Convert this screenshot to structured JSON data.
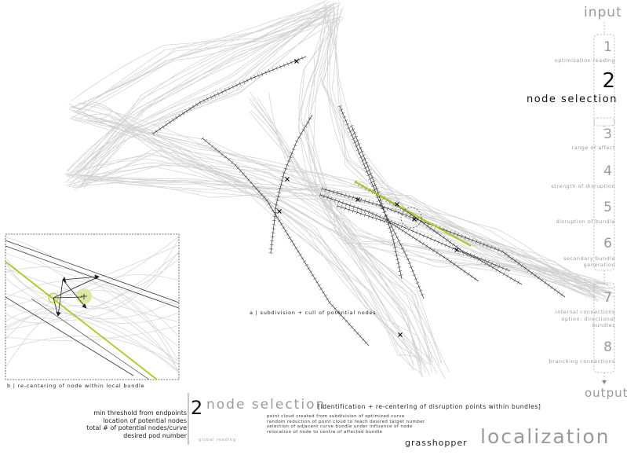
{
  "flow": {
    "input_label": "input",
    "output_label": "output",
    "steps": [
      {
        "number": "1",
        "label": "optimization reading"
      },
      {
        "number": "2",
        "label": "node selection"
      },
      {
        "number": "3",
        "label": "range of affect"
      },
      {
        "number": "4",
        "label": "strength of disruption"
      },
      {
        "number": "5",
        "label": "disruption of bundle"
      },
      {
        "number": "6",
        "label": "secondary bundle generation"
      },
      {
        "number": "7",
        "label": "internal connections",
        "sublabel": "option: directional bundles"
      },
      {
        "number": "8",
        "label": "branching connections"
      }
    ]
  },
  "captions": {
    "a": "a | subdivision + cull of potential nodes",
    "b": "b | re-centering of node within local bundle"
  },
  "section": {
    "number": "2",
    "title": "node selection",
    "subtitle": "[identification + re-centering of disruption points within bundles]",
    "small_label": "global reading",
    "parameters": [
      "min threshold from endpoints",
      "location of potential nodes",
      "total # of potential nodes/curve",
      "desired pod number"
    ],
    "descriptions": [
      "point cloud created from subdivision of optimized curve",
      "random reduction of point cloud to reach desired target number",
      "selection of adjacent curve bundle under influence of node",
      "relocation of node to centre of affected bundle"
    ]
  },
  "footer": {
    "software": "grasshopper",
    "title": "localization"
  },
  "colors": {
    "accent": "#a8cc1a",
    "bundle_gray": "#c8c8c8",
    "dark_line": "#333333"
  }
}
